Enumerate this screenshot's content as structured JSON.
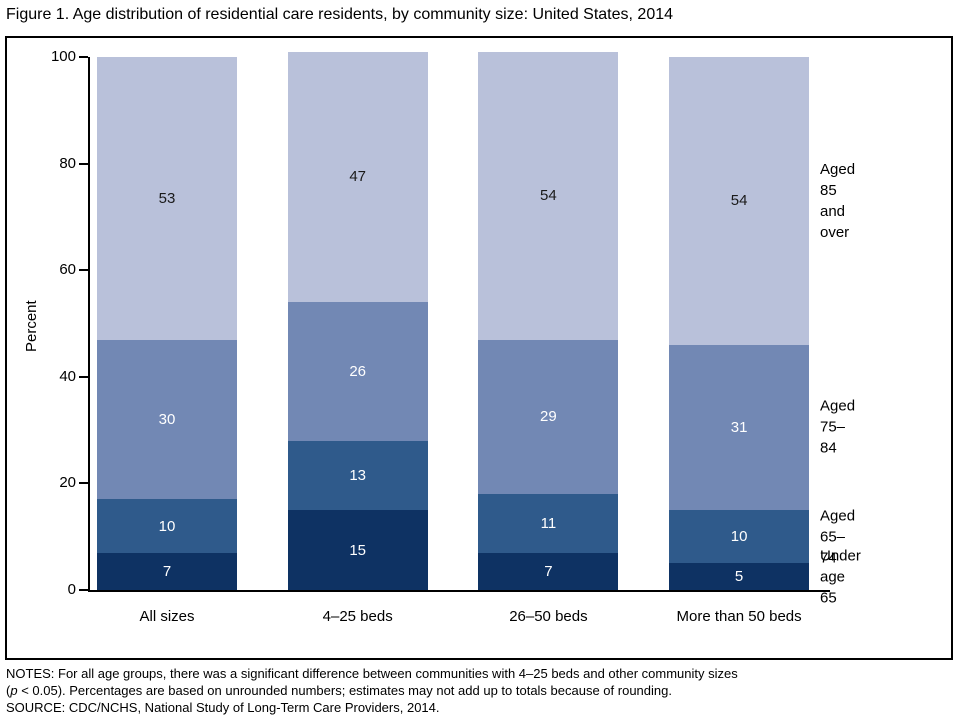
{
  "title": "Figure 1. Age distribution of residential care residents, by community size: United States, 2014",
  "chart_data": {
    "type": "bar",
    "subtype": "stacked",
    "title": "Figure 1. Age distribution of residential care residents, by community size: United States, 2014",
    "ylabel": "Percent",
    "ylim": [
      0,
      100
    ],
    "yticks": [
      0,
      20,
      40,
      60,
      80,
      100
    ],
    "grid": "off",
    "legend_position": "right",
    "categories": [
      "All sizes",
      "4–25 beds",
      "26–50 beds",
      "More than 50 beds"
    ],
    "series": [
      {
        "name": "Under age 65",
        "legend": "Under age 65",
        "color": "#0e3263",
        "label_color": "#ffffff",
        "values": [
          7,
          15,
          7,
          5
        ]
      },
      {
        "name": "Aged 65–74",
        "legend": "Aged 65–74",
        "color": "#2f5a8b",
        "label_color": "#ffffff",
        "values": [
          10,
          13,
          11,
          10
        ]
      },
      {
        "name": "Aged 75–84",
        "legend": "Aged 75–84",
        "color": "#7288b4",
        "label_color": "#ffffff",
        "values": [
          30,
          26,
          29,
          31
        ]
      },
      {
        "name": "Aged 85 and over",
        "legend": "Aged 85\nand over",
        "color": "#b9c1da",
        "label_color": "#1a1a1a",
        "values": [
          53,
          47,
          54,
          54
        ]
      }
    ]
  },
  "notes": {
    "line1": "NOTES: For all age groups, there was a significant difference between communities with 4–25 beds and other community sizes",
    "line2_pre": "(",
    "line2_italic": "p",
    "line2_post": " < 0.05). Percentages are based on unrounded numbers; estimates may not add up to totals because of rounding.",
    "line3": "SOURCE: CDC/NCHS, National Study of Long-Term Care Providers, 2014."
  }
}
